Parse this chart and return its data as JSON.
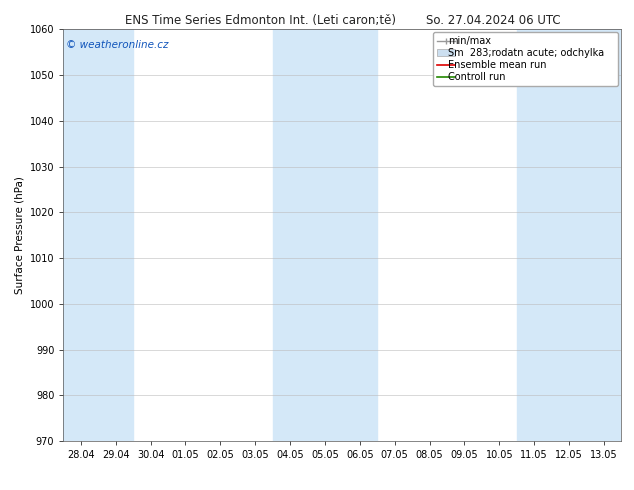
{
  "title": "ENS Time Series Edmonton Int. (Leti caron;tě)",
  "date_str": "So. 27.04.2024 06 UTC",
  "ylabel": "Surface Pressure (hPa)",
  "ylim": [
    970,
    1060
  ],
  "yticks": [
    970,
    980,
    990,
    1000,
    1010,
    1020,
    1030,
    1040,
    1050,
    1060
  ],
  "xlabels": [
    "28.04",
    "29.04",
    "30.04",
    "01.05",
    "02.05",
    "03.05",
    "04.05",
    "05.05",
    "06.05",
    "07.05",
    "08.05",
    "09.05",
    "10.05",
    "11.05",
    "12.05",
    "13.05"
  ],
  "copyright_text": "© weatheronline.cz",
  "copyright_color": "#1155bb",
  "background_color": "#ffffff",
  "band_color": "#d4e8f8",
  "highlighted_x_indices": [
    0,
    1,
    6,
    7,
    8,
    13,
    14,
    15
  ],
  "title_fontsize": 8.5,
  "ylabel_fontsize": 7.5,
  "tick_fontsize": 7,
  "legend_fontsize": 7,
  "copyright_fontsize": 7.5
}
